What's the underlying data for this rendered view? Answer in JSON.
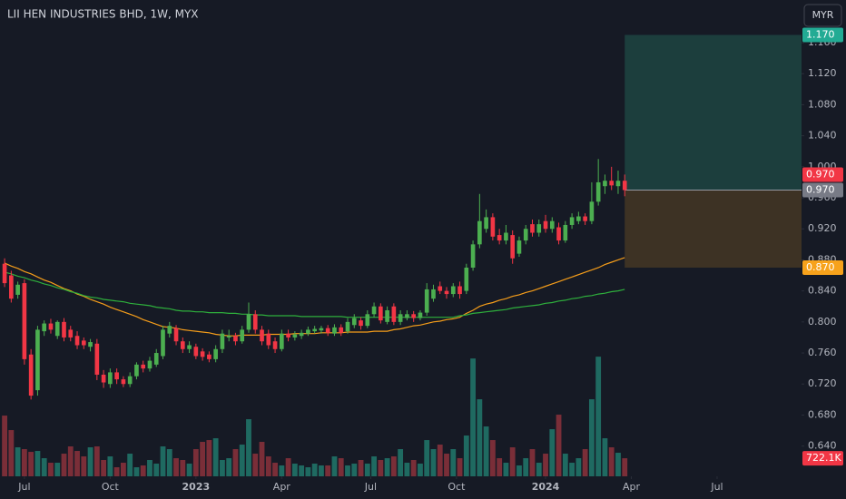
{
  "chart_data": {
    "type": "candlestick",
    "title": "LII HEN INDUSTRIES BHD, 1W, MYX",
    "currency": "MYR",
    "up_color": "#4caf50",
    "down_color": "#f23645",
    "ylim": [
      0.601,
      1.215
    ],
    "yticks": [
      {
        "value": 0.64,
        "label": "0.640"
      },
      {
        "value": 0.68,
        "label": "0.680"
      },
      {
        "value": 0.72,
        "label": "0.720"
      },
      {
        "value": 0.76,
        "label": "0.760"
      },
      {
        "value": 0.8,
        "label": "0.800"
      },
      {
        "value": 0.84,
        "label": "0.840"
      },
      {
        "value": 0.88,
        "label": "0.880"
      },
      {
        "value": 0.92,
        "label": "0.920"
      },
      {
        "value": 0.96,
        "label": "0.960"
      },
      {
        "value": 1.0,
        "label": "1.000"
      },
      {
        "value": 1.04,
        "label": "1.040"
      },
      {
        "value": 1.08,
        "label": "1.080"
      },
      {
        "value": 1.12,
        "label": "1.120"
      },
      {
        "value": 1.16,
        "label": "1.160"
      }
    ],
    "xlim": [
      -0.7,
      120.8
    ],
    "xticks": [
      {
        "value": 3,
        "label": "Jul"
      },
      {
        "value": 16,
        "label": "Oct"
      },
      {
        "value": 29,
        "label": "2023"
      },
      {
        "value": 42,
        "label": "Apr"
      },
      {
        "value": 55.5,
        "label": "Jul"
      },
      {
        "value": 68.5,
        "label": "Oct"
      },
      {
        "value": 82,
        "label": "2024"
      },
      {
        "value": 95,
        "label": "Apr"
      },
      {
        "value": 108,
        "label": "Jul"
      }
    ],
    "ohlc": [
      [
        0.875,
        0.882,
        0.845,
        0.85
      ],
      [
        0.86,
        0.866,
        0.825,
        0.83
      ],
      [
        0.835,
        0.852,
        0.83,
        0.848
      ],
      [
        0.85,
        0.855,
        0.745,
        0.752
      ],
      [
        0.758,
        0.765,
        0.7,
        0.705
      ],
      [
        0.712,
        0.795,
        0.705,
        0.79
      ],
      [
        0.788,
        0.802,
        0.782,
        0.798
      ],
      [
        0.798,
        0.804,
        0.785,
        0.79
      ],
      [
        0.782,
        0.802,
        0.778,
        0.8
      ],
      [
        0.8,
        0.805,
        0.775,
        0.78
      ],
      [
        0.79,
        0.795,
        0.775,
        0.78
      ],
      [
        0.782,
        0.788,
        0.765,
        0.77
      ],
      [
        0.776,
        0.78,
        0.765,
        0.77
      ],
      [
        0.768,
        0.778,
        0.762,
        0.774
      ],
      [
        0.772,
        0.778,
        0.725,
        0.732
      ],
      [
        0.732,
        0.738,
        0.715,
        0.722
      ],
      [
        0.72,
        0.74,
        0.715,
        0.735
      ],
      [
        0.735,
        0.74,
        0.72,
        0.726
      ],
      [
        0.726,
        0.73,
        0.716,
        0.72
      ],
      [
        0.72,
        0.735,
        0.716,
        0.73
      ],
      [
        0.73,
        0.748,
        0.726,
        0.745
      ],
      [
        0.745,
        0.75,
        0.735,
        0.74
      ],
      [
        0.74,
        0.755,
        0.736,
        0.75
      ],
      [
        0.745,
        0.765,
        0.742,
        0.76
      ],
      [
        0.756,
        0.795,
        0.752,
        0.79
      ],
      [
        0.785,
        0.8,
        0.78,
        0.795
      ],
      [
        0.792,
        0.796,
        0.77,
        0.775
      ],
      [
        0.775,
        0.78,
        0.76,
        0.765
      ],
      [
        0.765,
        0.775,
        0.76,
        0.77
      ],
      [
        0.768,
        0.772,
        0.752,
        0.756
      ],
      [
        0.762,
        0.766,
        0.75,
        0.755
      ],
      [
        0.758,
        0.762,
        0.748,
        0.752
      ],
      [
        0.752,
        0.77,
        0.748,
        0.765
      ],
      [
        0.765,
        0.79,
        0.76,
        0.785
      ],
      [
        0.78,
        0.79,
        0.775,
        0.782
      ],
      [
        0.782,
        0.786,
        0.77,
        0.775
      ],
      [
        0.775,
        0.795,
        0.772,
        0.79
      ],
      [
        0.79,
        0.825,
        0.786,
        0.81
      ],
      [
        0.81,
        0.815,
        0.785,
        0.79
      ],
      [
        0.79,
        0.795,
        0.77,
        0.775
      ],
      [
        0.785,
        0.79,
        0.765,
        0.77
      ],
      [
        0.775,
        0.78,
        0.76,
        0.765
      ],
      [
        0.765,
        0.79,
        0.762,
        0.785
      ],
      [
        0.785,
        0.79,
        0.775,
        0.78
      ],
      [
        0.78,
        0.788,
        0.776,
        0.784
      ],
      [
        0.782,
        0.79,
        0.778,
        0.786
      ],
      [
        0.785,
        0.794,
        0.782,
        0.79
      ],
      [
        0.788,
        0.795,
        0.785,
        0.791
      ],
      [
        0.789,
        0.795,
        0.785,
        0.792
      ],
      [
        0.792,
        0.796,
        0.782,
        0.786
      ],
      [
        0.785,
        0.797,
        0.782,
        0.793
      ],
      [
        0.793,
        0.797,
        0.782,
        0.786
      ],
      [
        0.788,
        0.805,
        0.785,
        0.8
      ],
      [
        0.796,
        0.81,
        0.792,
        0.805
      ],
      [
        0.802,
        0.806,
        0.79,
        0.795
      ],
      [
        0.795,
        0.815,
        0.792,
        0.81
      ],
      [
        0.81,
        0.825,
        0.806,
        0.82
      ],
      [
        0.82,
        0.824,
        0.798,
        0.802
      ],
      [
        0.8,
        0.82,
        0.797,
        0.815
      ],
      [
        0.82,
        0.824,
        0.796,
        0.8
      ],
      [
        0.8,
        0.815,
        0.796,
        0.81
      ],
      [
        0.805,
        0.815,
        0.802,
        0.81
      ],
      [
        0.81,
        0.814,
        0.8,
        0.805
      ],
      [
        0.805,
        0.815,
        0.802,
        0.812
      ],
      [
        0.812,
        0.85,
        0.808,
        0.842
      ],
      [
        0.83,
        0.848,
        0.826,
        0.842
      ],
      [
        0.846,
        0.852,
        0.836,
        0.84
      ],
      [
        0.84,
        0.845,
        0.83,
        0.836
      ],
      [
        0.836,
        0.85,
        0.832,
        0.846
      ],
      [
        0.846,
        0.852,
        0.83,
        0.836
      ],
      [
        0.84,
        0.875,
        0.836,
        0.87
      ],
      [
        0.87,
        0.905,
        0.866,
        0.9
      ],
      [
        0.9,
        0.965,
        0.895,
        0.93
      ],
      [
        0.92,
        0.945,
        0.915,
        0.935
      ],
      [
        0.935,
        0.94,
        0.905,
        0.91
      ],
      [
        0.912,
        0.92,
        0.9,
        0.905
      ],
      [
        0.905,
        0.925,
        0.9,
        0.915
      ],
      [
        0.912,
        0.918,
        0.875,
        0.882
      ],
      [
        0.888,
        0.91,
        0.884,
        0.905
      ],
      [
        0.905,
        0.925,
        0.9,
        0.92
      ],
      [
        0.926,
        0.932,
        0.91,
        0.915
      ],
      [
        0.915,
        0.932,
        0.91,
        0.926
      ],
      [
        0.93,
        0.938,
        0.915,
        0.92
      ],
      [
        0.92,
        0.935,
        0.915,
        0.93
      ],
      [
        0.922,
        0.928,
        0.9,
        0.905
      ],
      [
        0.905,
        0.93,
        0.902,
        0.925
      ],
      [
        0.925,
        0.94,
        0.92,
        0.935
      ],
      [
        0.93,
        0.942,
        0.926,
        0.936
      ],
      [
        0.936,
        0.94,
        0.925,
        0.93
      ],
      [
        0.93,
        0.98,
        0.926,
        0.955
      ],
      [
        0.955,
        1.01,
        0.95,
        0.98
      ],
      [
        0.975,
        0.99,
        0.965,
        0.982
      ],
      [
        0.982,
        1.0,
        0.97,
        0.976
      ],
      [
        0.975,
        0.995,
        0.965,
        0.982
      ],
      [
        0.982,
        0.99,
        0.962,
        0.97
      ]
    ],
    "moving_averages": [
      {
        "color": "#f59d1a",
        "values": [
          0.876,
          0.872,
          0.869,
          0.865,
          0.862,
          0.858,
          0.854,
          0.851,
          0.847,
          0.843,
          0.84,
          0.836,
          0.833,
          0.829,
          0.826,
          0.823,
          0.819,
          0.816,
          0.813,
          0.81,
          0.807,
          0.803,
          0.8,
          0.797,
          0.794,
          0.793,
          0.792,
          0.79,
          0.789,
          0.788,
          0.787,
          0.786,
          0.784,
          0.783,
          0.782,
          0.782,
          0.783,
          0.783,
          0.783,
          0.783,
          0.784,
          0.784,
          0.784,
          0.784,
          0.785,
          0.785,
          0.785,
          0.785,
          0.786,
          0.786,
          0.786,
          0.786,
          0.787,
          0.787,
          0.787,
          0.787,
          0.788,
          0.788,
          0.788,
          0.79,
          0.791,
          0.793,
          0.795,
          0.796,
          0.798,
          0.8,
          0.801,
          0.803,
          0.804,
          0.806,
          0.811,
          0.815,
          0.82,
          0.823,
          0.825,
          0.828,
          0.83,
          0.833,
          0.835,
          0.838,
          0.84,
          0.843,
          0.846,
          0.849,
          0.852,
          0.855,
          0.858,
          0.861,
          0.864,
          0.867,
          0.87,
          0.874,
          0.877,
          0.88,
          0.883
        ]
      },
      {
        "color": "#2eaf3c",
        "values": [
          0.864,
          0.862,
          0.859,
          0.857,
          0.854,
          0.852,
          0.849,
          0.847,
          0.844,
          0.842,
          0.839,
          0.837,
          0.834,
          0.832,
          0.831,
          0.829,
          0.828,
          0.827,
          0.826,
          0.824,
          0.823,
          0.822,
          0.821,
          0.819,
          0.818,
          0.817,
          0.815,
          0.814,
          0.814,
          0.813,
          0.813,
          0.812,
          0.812,
          0.812,
          0.811,
          0.811,
          0.81,
          0.81,
          0.809,
          0.809,
          0.808,
          0.808,
          0.808,
          0.808,
          0.808,
          0.807,
          0.807,
          0.807,
          0.807,
          0.807,
          0.807,
          0.807,
          0.806,
          0.806,
          0.806,
          0.806,
          0.806,
          0.806,
          0.806,
          0.806,
          0.806,
          0.806,
          0.806,
          0.806,
          0.806,
          0.806,
          0.806,
          0.806,
          0.806,
          0.808,
          0.809,
          0.811,
          0.812,
          0.813,
          0.814,
          0.815,
          0.816,
          0.818,
          0.819,
          0.82,
          0.821,
          0.822,
          0.824,
          0.825,
          0.827,
          0.828,
          0.83,
          0.831,
          0.833,
          0.834,
          0.836,
          0.837,
          0.839,
          0.84,
          0.842
        ]
      }
    ],
    "volume": {
      "up_color": "#1f6a61",
      "down_color": "#7a2e38",
      "lim": [
        0,
        5000
      ],
      "values": [
        2425,
        1846,
        1158,
        1086,
        977,
        1014,
        724,
        543,
        543,
        905,
        1195,
        1014,
        796,
        1158,
        1195,
        652,
        796,
        362,
        543,
        905,
        362,
        434,
        652,
        507,
        1195,
        1086,
        724,
        652,
        507,
        1086,
        1376,
        1448,
        1520,
        652,
        724,
        1086,
        1267,
        2281,
        905,
        1376,
        796,
        543,
        434,
        724,
        507,
        434,
        362,
        507,
        434,
        434,
        796,
        724,
        434,
        507,
        652,
        507,
        796,
        652,
        724,
        796,
        1086,
        543,
        652,
        507,
        1448,
        1086,
        1267,
        905,
        1086,
        724,
        1629,
        4706,
        3077,
        1991,
        1448,
        724,
        543,
        1158,
        434,
        724,
        1086,
        543,
        905,
        1882,
        2462,
        905,
        543,
        724,
        1086,
        3077,
        4778,
        1520,
        1158,
        941,
        722.1
      ],
      "last_label": "722.1K"
    },
    "last_price": {
      "value": 0.97,
      "label": "0.970",
      "color": "#f23645"
    },
    "position": {
      "target": {
        "value": 1.17,
        "label": "1.170",
        "color": "#22ab94",
        "fill": "#1c3e3d"
      },
      "entry": {
        "value": 0.97,
        "label": "0.970",
        "color": "#787b86"
      },
      "stop": {
        "value": 0.87,
        "label": "0.870",
        "color": "#f7a21b",
        "fill": "#3d3224"
      }
    }
  }
}
